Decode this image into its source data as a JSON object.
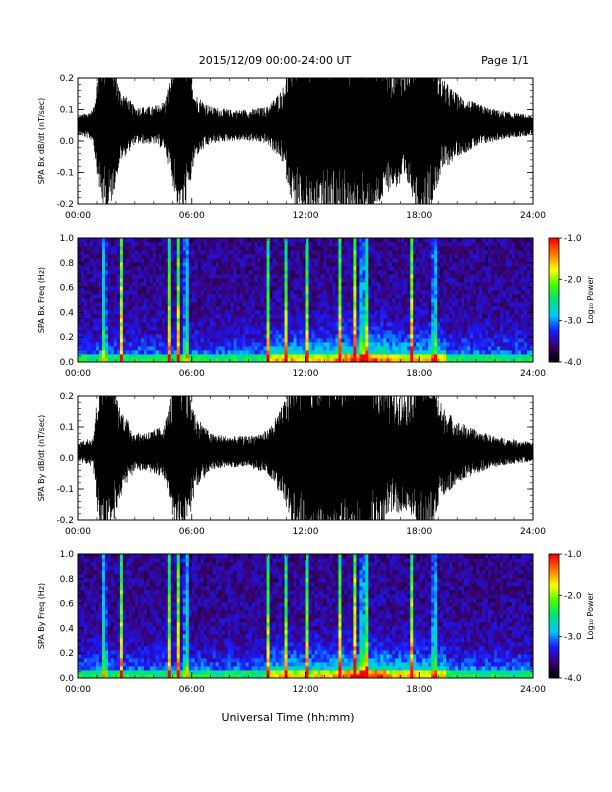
{
  "header": {
    "title": "2015/12/09  00:00-24:00 UT",
    "page": "Page 1/1"
  },
  "xaxis": {
    "label": "Universal Time (hh:mm)",
    "ticks": [
      "00:00",
      "06:00",
      "12:00",
      "18:00",
      "24:00"
    ],
    "range_hours": [
      0,
      24
    ]
  },
  "colorbar": {
    "label": "Log₁₀ Power",
    "ticks": [
      "-1.0",
      "-2.0",
      "-3.0",
      "-4.0"
    ],
    "range": [
      -4.0,
      -1.0
    ],
    "colormap": [
      "#000000",
      "#3a0070",
      "#1a1aff",
      "#00c8ff",
      "#00e080",
      "#40ff00",
      "#ffff00",
      "#ff8000",
      "#ff0000"
    ]
  },
  "chart_data": [
    {
      "type": "line",
      "ylabel": "SPA Bx dB/dt (nT/sec)",
      "ylim": [
        -0.2,
        0.2
      ],
      "yticks": [
        "0.2",
        "0.1",
        "0.0",
        "-0.1",
        "-0.2"
      ],
      "baseline": 0.05,
      "envelope": {
        "time_hours": [
          0,
          0.8,
          1.2,
          1.6,
          2.2,
          3.0,
          4.0,
          4.6,
          5.2,
          5.6,
          6.2,
          7.0,
          8.0,
          9.0,
          10.0,
          10.8,
          11.5,
          12.5,
          13.5,
          14.5,
          15.0,
          15.5,
          16.5,
          17.5,
          18.0,
          18.5,
          19.2,
          20.0,
          21.0,
          22.0,
          23.0,
          24.0
        ],
        "amplitude": [
          0.03,
          0.05,
          0.25,
          0.3,
          0.12,
          0.06,
          0.06,
          0.08,
          0.25,
          0.3,
          0.1,
          0.06,
          0.05,
          0.05,
          0.06,
          0.12,
          0.3,
          0.3,
          0.3,
          0.3,
          0.35,
          0.3,
          0.2,
          0.2,
          0.3,
          0.28,
          0.15,
          0.1,
          0.07,
          0.05,
          0.04,
          0.03
        ]
      }
    },
    {
      "type": "heatmap",
      "ylabel": "SPA Bx Freq (Hz)",
      "ylim": [
        0.0,
        1.0
      ],
      "yticks": [
        "1.0",
        "0.8",
        "0.6",
        "0.4",
        "0.2",
        "0.0"
      ],
      "bursts_hours": [
        1.4,
        2.3,
        4.8,
        5.3,
        5.7,
        10.0,
        11.0,
        12.1,
        13.8,
        14.6,
        15.0,
        15.2,
        17.6,
        18.8
      ]
    },
    {
      "type": "line",
      "ylabel": "SPA By dB/dt (nT/sec)",
      "ylim": [
        -0.2,
        0.2
      ],
      "yticks": [
        "0.2",
        "0.1",
        "0.0",
        "-0.1",
        "-0.2"
      ],
      "baseline": 0.02,
      "envelope": {
        "time_hours": [
          0,
          0.8,
          1.2,
          1.6,
          2.2,
          3.0,
          4.0,
          4.6,
          5.2,
          5.6,
          6.2,
          7.0,
          8.0,
          9.0,
          10.0,
          10.8,
          11.5,
          12.5,
          13.5,
          14.5,
          15.0,
          15.5,
          16.5,
          17.5,
          18.0,
          18.5,
          19.2,
          20.0,
          21.0,
          22.0,
          23.0,
          24.0
        ],
        "amplitude": [
          0.03,
          0.05,
          0.3,
          0.3,
          0.15,
          0.06,
          0.07,
          0.09,
          0.28,
          0.3,
          0.12,
          0.06,
          0.05,
          0.05,
          0.07,
          0.15,
          0.3,
          0.3,
          0.3,
          0.3,
          0.35,
          0.3,
          0.2,
          0.2,
          0.3,
          0.28,
          0.15,
          0.1,
          0.07,
          0.05,
          0.04,
          0.03
        ]
      }
    },
    {
      "type": "heatmap",
      "ylabel": "SPA By Freq (Hz)",
      "ylim": [
        0.0,
        1.0
      ],
      "yticks": [
        "1.0",
        "0.8",
        "0.6",
        "0.4",
        "0.2",
        "0.0"
      ],
      "bursts_hours": [
        1.4,
        2.3,
        4.8,
        5.3,
        5.7,
        10.0,
        11.0,
        12.1,
        13.8,
        14.6,
        15.0,
        15.2,
        17.6,
        18.8
      ]
    }
  ]
}
